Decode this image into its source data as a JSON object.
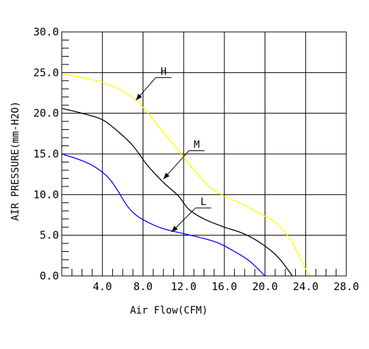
{
  "chart_data": {
    "type": "line",
    "xlabel": "Air Flow(CFM)",
    "ylabel": "AIR PRESSURE(mm-H2O)",
    "xlim": [
      0,
      28
    ],
    "ylim": [
      0,
      30
    ],
    "x_ticks": [
      "4.0",
      "8.0",
      "12.0",
      "16.0",
      "20.0",
      "24.0",
      "28.0"
    ],
    "y_ticks": [
      "0.0",
      "5.0",
      "10.0",
      "15.0",
      "20.0",
      "25.0",
      "30.0"
    ],
    "grid": true,
    "series": [
      {
        "name": "H",
        "color": "#ffff00",
        "points": [
          [
            0,
            24.8
          ],
          [
            2,
            24.4
          ],
          [
            4,
            23.8
          ],
          [
            6,
            22.7
          ],
          [
            7.3,
            21.6
          ],
          [
            8.5,
            20.0
          ],
          [
            10,
            17.6
          ],
          [
            11.5,
            15.4
          ],
          [
            13,
            13.0
          ],
          [
            14.5,
            11.0
          ],
          [
            16,
            9.8
          ],
          [
            17.5,
            9.0
          ],
          [
            19,
            8.0
          ],
          [
            20.5,
            7.0
          ],
          [
            21.5,
            6.0
          ],
          [
            22.5,
            4.5
          ],
          [
            23.5,
            2.0
          ],
          [
            24.4,
            0
          ]
        ]
      },
      {
        "name": "M",
        "color": "#000000",
        "points": [
          [
            0,
            20.6
          ],
          [
            2,
            20.0
          ],
          [
            4,
            19.2
          ],
          [
            5.5,
            17.8
          ],
          [
            7,
            16.0
          ],
          [
            8.5,
            13.5
          ],
          [
            10,
            11.5
          ],
          [
            11.5,
            9.8
          ],
          [
            12.5,
            8.2
          ],
          [
            14,
            7.0
          ],
          [
            16,
            6.0
          ],
          [
            17.5,
            5.4
          ],
          [
            19,
            4.5
          ],
          [
            20.5,
            3.2
          ],
          [
            21.5,
            2.0
          ],
          [
            22.7,
            0
          ]
        ]
      },
      {
        "name": "L",
        "color": "#0000ff",
        "points": [
          [
            0,
            15.0
          ],
          [
            1.5,
            14.4
          ],
          [
            3,
            13.6
          ],
          [
            4.5,
            12.2
          ],
          [
            5.5,
            10.5
          ],
          [
            6.5,
            8.5
          ],
          [
            7.5,
            7.3
          ],
          [
            8.8,
            6.4
          ],
          [
            10,
            5.8
          ],
          [
            12,
            5.2
          ],
          [
            14,
            4.6
          ],
          [
            15.5,
            4.0
          ],
          [
            17,
            3.0
          ],
          [
            18.5,
            1.8
          ],
          [
            20,
            0
          ]
        ]
      }
    ],
    "annotations": [
      {
        "text": "H",
        "series": "H",
        "point": [
          7.3,
          21.6
        ]
      },
      {
        "text": "M",
        "series": "M",
        "point": [
          10,
          11.9
        ]
      },
      {
        "text": "L",
        "series": "L",
        "point": [
          10.8,
          5.4
        ]
      }
    ]
  }
}
